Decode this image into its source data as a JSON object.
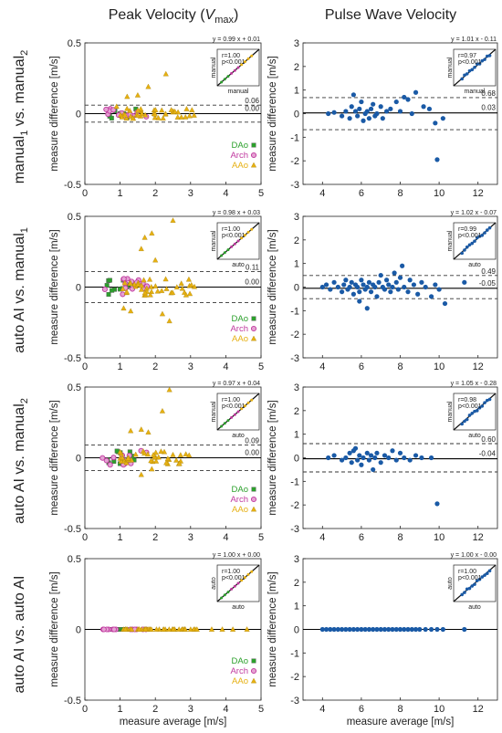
{
  "column_titles": {
    "left_main": "Peak Velocity (",
    "left_var": "V",
    "left_sub": "max",
    "left_close": ")",
    "right": "Pulse Wave Velocity"
  },
  "row_labels": [
    {
      "main": "manual",
      "sub1": "1",
      "vs": " vs. manual",
      "sub2": "2"
    },
    {
      "main": "auto AI vs. manual",
      "sub1": "",
      "vs": "",
      "sub2": "1"
    },
    {
      "main": "auto AI vs. manual",
      "sub1": "",
      "vs": "",
      "sub2": "2"
    },
    {
      "main": "auto AI vs. auto AI",
      "sub1": "",
      "vs": "",
      "sub2": ""
    }
  ],
  "xlabel": "measure average [m/s]",
  "ylabel": "measure difference [m/s]",
  "legend": [
    "DAo",
    "Arch",
    "AAo"
  ],
  "colors": {
    "dao": "#2ca02c",
    "arch": "#c0399f",
    "aao": "#e6b012",
    "pwv": "#1a5aa6",
    "mean_line": "#000000",
    "loa_line": "#333333"
  },
  "chart_data": [
    {
      "type": "scatter",
      "panel": "peak-manual1-vs-manual2",
      "xlim": [
        0,
        5
      ],
      "ylim": [
        -0.5,
        0.5
      ],
      "xticks": [
        "0",
        "1",
        "2",
        "3",
        "4",
        "5"
      ],
      "yticks": [
        "-0.5",
        "0",
        "0.5"
      ],
      "loa_upper": 0.06,
      "mean": 0.0,
      "loa_lower": -0.06,
      "loa_upper_label": "0.06",
      "mean_label": "0.00",
      "inset": {
        "equation": "y = 0.99 x + 0.01",
        "r": "r=1.00",
        "p": "p<0.001",
        "xlabel": "manual",
        "ylabel": "manual"
      },
      "spread": 0.035,
      "outliers": [
        [
          1.2,
          0.12
        ],
        [
          1.5,
          0.13
        ],
        [
          1.8,
          0.19
        ],
        [
          2.3,
          0.28
        ],
        [
          0.9,
          0.05
        ]
      ]
    },
    {
      "type": "scatter",
      "panel": "pwv-manual1-vs-manual2",
      "xlim": [
        3,
        13
      ],
      "ylim": [
        -3,
        3
      ],
      "xticks": [
        "4",
        "6",
        "8",
        "10",
        "12"
      ],
      "yticks": [
        "-3",
        "-2",
        "-1",
        "0",
        "1",
        "2",
        "3"
      ],
      "loa_upper": 0.68,
      "mean": 0.03,
      "loa_lower": -0.68,
      "loa_upper_label": "0.68",
      "mean_label": "0.03",
      "inset": {
        "equation": "y = 1.01 x - 0.11",
        "r": "r=0.97",
        "p": "p<0.001",
        "xlabel": "manual",
        "ylabel": "manual"
      },
      "points": [
        [
          4.3,
          0.0
        ],
        [
          4.6,
          0.05
        ],
        [
          5.0,
          -0.1
        ],
        [
          5.2,
          0.1
        ],
        [
          5.4,
          -0.2
        ],
        [
          5.5,
          0.3
        ],
        [
          5.6,
          0.8
        ],
        [
          5.7,
          0.1
        ],
        [
          5.8,
          -0.1
        ],
        [
          5.9,
          0.2
        ],
        [
          6.0,
          0.5
        ],
        [
          6.1,
          -0.3
        ],
        [
          6.2,
          0.0
        ],
        [
          6.3,
          0.1
        ],
        [
          6.4,
          -0.2
        ],
        [
          6.5,
          0.2
        ],
        [
          6.6,
          0.4
        ],
        [
          6.7,
          -0.1
        ],
        [
          6.8,
          0.0
        ],
        [
          7.0,
          0.3
        ],
        [
          7.1,
          -0.2
        ],
        [
          7.3,
          0.1
        ],
        [
          7.5,
          0.2
        ],
        [
          7.8,
          0.5
        ],
        [
          8.0,
          0.1
        ],
        [
          8.2,
          0.7
        ],
        [
          8.4,
          0.6
        ],
        [
          8.6,
          0.0
        ],
        [
          8.8,
          0.9
        ],
        [
          9.2,
          0.3
        ],
        [
          9.5,
          0.2
        ],
        [
          9.8,
          -0.4
        ],
        [
          10.2,
          -0.2
        ],
        [
          9.9,
          -1.95
        ]
      ]
    },
    {
      "type": "scatter",
      "panel": "peak-autoai-vs-manual1",
      "xlim": [
        0,
        5
      ],
      "ylim": [
        -0.5,
        0.5
      ],
      "xticks": [
        "0",
        "1",
        "2",
        "3",
        "4",
        "5"
      ],
      "yticks": [
        "-0.5",
        "0",
        "0.5"
      ],
      "loa_upper": 0.11,
      "mean": 0.0,
      "loa_lower": -0.11,
      "loa_upper_label": "0.11",
      "mean_label": "0.00",
      "inset": {
        "equation": "y = 0.98 x + 0.03",
        "r": "r=1.00",
        "p": "p<0.001",
        "xlabel": "auto",
        "ylabel": "manual"
      },
      "spread": 0.06,
      "outliers": [
        [
          1.6,
          0.27
        ],
        [
          1.7,
          0.35
        ],
        [
          1.9,
          0.38
        ],
        [
          2.5,
          0.47
        ],
        [
          2.0,
          0.19
        ],
        [
          2.2,
          -0.19
        ],
        [
          2.4,
          -0.24
        ],
        [
          1.3,
          -0.17
        ],
        [
          1.1,
          -0.15
        ]
      ]
    },
    {
      "type": "scatter",
      "panel": "pwv-autoai-vs-manual1",
      "xlim": [
        3,
        13
      ],
      "ylim": [
        -3,
        3
      ],
      "xticks": [
        "4",
        "6",
        "8",
        "10",
        "12"
      ],
      "yticks": [
        "-3",
        "-2",
        "-1",
        "0",
        "1",
        "2",
        "3"
      ],
      "loa_upper": 0.49,
      "mean": -0.05,
      "loa_lower": -0.49,
      "loa_upper_label": "0.49",
      "mean_label": "-0.05",
      "inset": {
        "equation": "y = 1.02 x - 0.07",
        "r": "r=0.99",
        "p": "p<0.001",
        "xlabel": "auto",
        "ylabel": "manual"
      },
      "points": [
        [
          4.0,
          0.0
        ],
        [
          4.2,
          0.1
        ],
        [
          4.4,
          -0.1
        ],
        [
          4.6,
          0.2
        ],
        [
          4.8,
          0.0
        ],
        [
          5.0,
          -0.2
        ],
        [
          5.1,
          0.1
        ],
        [
          5.2,
          0.3
        ],
        [
          5.3,
          -0.1
        ],
        [
          5.4,
          0.0
        ],
        [
          5.5,
          0.2
        ],
        [
          5.6,
          -0.3
        ],
        [
          5.7,
          0.1
        ],
        [
          5.8,
          0.0
        ],
        [
          5.9,
          -0.2
        ],
        [
          6.0,
          0.3
        ],
        [
          6.1,
          0.1
        ],
        [
          6.2,
          -0.1
        ],
        [
          6.3,
          0.0
        ],
        [
          6.4,
          0.2
        ],
        [
          6.5,
          -0.2
        ],
        [
          6.6,
          0.1
        ],
        [
          6.7,
          0.0
        ],
        [
          6.8,
          -0.4
        ],
        [
          6.9,
          0.2
        ],
        [
          7.0,
          0.5
        ],
        [
          7.1,
          0.0
        ],
        [
          7.2,
          -0.1
        ],
        [
          7.3,
          0.3
        ],
        [
          7.4,
          0.1
        ],
        [
          7.5,
          -0.2
        ],
        [
          7.6,
          0.0
        ],
        [
          7.7,
          0.6
        ],
        [
          7.8,
          0.2
        ],
        [
          7.9,
          -0.1
        ],
        [
          8.0,
          0.4
        ],
        [
          8.1,
          0.9
        ],
        [
          8.2,
          0.0
        ],
        [
          8.4,
          -0.2
        ],
        [
          8.5,
          0.3
        ],
        [
          8.7,
          0.1
        ],
        [
          8.9,
          -0.3
        ],
        [
          9.1,
          0.2
        ],
        [
          9.3,
          0.0
        ],
        [
          9.6,
          -0.4
        ],
        [
          9.8,
          0.1
        ],
        [
          10.0,
          -0.1
        ],
        [
          10.3,
          -0.7
        ],
        [
          6.3,
          -0.9
        ],
        [
          5.9,
          -0.6
        ],
        [
          11.3,
          0.2
        ]
      ]
    },
    {
      "type": "scatter",
      "panel": "peak-autoai-vs-manual2",
      "xlim": [
        0,
        5
      ],
      "ylim": [
        -0.5,
        0.5
      ],
      "xticks": [
        "0",
        "1",
        "2",
        "3",
        "4",
        "5"
      ],
      "yticks": [
        "-0.5",
        "0",
        "0.5"
      ],
      "loa_upper": 0.09,
      "mean": 0.0,
      "loa_lower": -0.09,
      "loa_upper_label": "0.09",
      "mean_label": "0.00",
      "inset": {
        "equation": "y = 0.97 x + 0.04",
        "r": "r=1.00",
        "p": "p<0.001",
        "xlabel": "auto",
        "ylabel": "manual"
      },
      "spread": 0.05,
      "outliers": [
        [
          1.3,
          0.19
        ],
        [
          1.6,
          0.2
        ],
        [
          1.8,
          0.18
        ],
        [
          2.2,
          0.33
        ],
        [
          2.4,
          0.48
        ],
        [
          1.0,
          0.04
        ],
        [
          1.6,
          -0.12
        ],
        [
          1.9,
          -0.08
        ]
      ]
    },
    {
      "type": "scatter",
      "panel": "pwv-autoai-vs-manual2",
      "xlim": [
        3,
        13
      ],
      "ylim": [
        -3,
        3
      ],
      "xticks": [
        "4",
        "6",
        "8",
        "10",
        "12"
      ],
      "yticks": [
        "-3",
        "-2",
        "-1",
        "0",
        "1",
        "2",
        "3"
      ],
      "loa_upper": 0.6,
      "mean": -0.04,
      "loa_lower": -0.6,
      "loa_upper_label": "0.60",
      "mean_label": "-0.04",
      "inset": {
        "equation": "y = 1.05 x - 0.28",
        "r": "r=0.98",
        "p": "p<0.001",
        "xlabel": "auto",
        "ylabel": "manual"
      },
      "points": [
        [
          4.3,
          0.0
        ],
        [
          4.6,
          0.1
        ],
        [
          5.0,
          -0.1
        ],
        [
          5.2,
          0.0
        ],
        [
          5.4,
          0.2
        ],
        [
          5.5,
          -0.2
        ],
        [
          5.6,
          0.3
        ],
        [
          5.7,
          0.4
        ],
        [
          5.8,
          -0.1
        ],
        [
          5.9,
          0.1
        ],
        [
          6.0,
          -0.3
        ],
        [
          6.1,
          0.0
        ],
        [
          6.3,
          0.2
        ],
        [
          6.4,
          -0.1
        ],
        [
          6.5,
          0.1
        ],
        [
          6.6,
          -0.5
        ],
        [
          6.7,
          0.0
        ],
        [
          6.8,
          0.2
        ],
        [
          7.0,
          -0.2
        ],
        [
          7.2,
          0.1
        ],
        [
          7.4,
          0.0
        ],
        [
          7.6,
          0.3
        ],
        [
          7.8,
          -0.1
        ],
        [
          8.0,
          0.2
        ],
        [
          8.2,
          0.0
        ],
        [
          8.5,
          -0.1
        ],
        [
          8.8,
          0.1
        ],
        [
          9.1,
          0.0
        ],
        [
          9.6,
          0.0
        ],
        [
          9.9,
          -1.95
        ]
      ]
    },
    {
      "type": "scatter",
      "panel": "peak-autoai-vs-autoai",
      "xlim": [
        0,
        5
      ],
      "ylim": [
        -0.5,
        0.5
      ],
      "xticks": [
        "0",
        "1",
        "2",
        "3",
        "4",
        "5"
      ],
      "yticks": [
        "-0.5",
        "0",
        "0.5"
      ],
      "loa_upper": 0.0,
      "mean": 0.0,
      "loa_lower": 0.0,
      "loa_upper_label": "",
      "mean_label": "",
      "inset": {
        "equation": "y = 1.00 x + 0.00",
        "r": "r=1.00",
        "p": "p<0.001",
        "xlabel": "auto",
        "ylabel": "auto"
      },
      "spread": 0.0,
      "outliers": [
        [
          3.6,
          0.0
        ],
        [
          3.9,
          0.0
        ],
        [
          4.2,
          0.0
        ],
        [
          4.6,
          0.0
        ]
      ]
    },
    {
      "type": "scatter",
      "panel": "pwv-autoai-vs-autoai",
      "xlim": [
        3,
        13
      ],
      "ylim": [
        -3,
        3
      ],
      "xticks": [
        "4",
        "6",
        "8",
        "10",
        "12"
      ],
      "yticks": [
        "-3",
        "-2",
        "-1",
        "0",
        "1",
        "2",
        "3"
      ],
      "loa_upper": 0.0,
      "mean": 0.0,
      "loa_lower": 0.0,
      "loa_upper_label": "",
      "mean_label": "",
      "inset": {
        "equation": "y = 1.00 x - 0.00",
        "r": "r=1.00",
        "p": "p<0.001",
        "xlabel": "auto",
        "ylabel": "auto"
      },
      "points": [
        [
          4.0,
          0
        ],
        [
          4.2,
          0
        ],
        [
          4.4,
          0
        ],
        [
          4.6,
          0
        ],
        [
          4.8,
          0
        ],
        [
          5.0,
          0
        ],
        [
          5.2,
          0
        ],
        [
          5.4,
          0
        ],
        [
          5.6,
          0
        ],
        [
          5.8,
          0
        ],
        [
          6.0,
          0
        ],
        [
          6.2,
          0
        ],
        [
          6.4,
          0
        ],
        [
          6.6,
          0
        ],
        [
          6.8,
          0
        ],
        [
          7.0,
          0
        ],
        [
          7.2,
          0
        ],
        [
          7.4,
          0
        ],
        [
          7.6,
          0
        ],
        [
          7.8,
          0
        ],
        [
          8.0,
          0
        ],
        [
          8.2,
          0
        ],
        [
          8.4,
          0
        ],
        [
          8.6,
          0
        ],
        [
          8.8,
          0
        ],
        [
          9.0,
          0
        ],
        [
          9.3,
          0
        ],
        [
          9.6,
          0
        ],
        [
          9.9,
          0
        ],
        [
          10.2,
          0
        ],
        [
          11.3,
          0
        ]
      ]
    }
  ]
}
